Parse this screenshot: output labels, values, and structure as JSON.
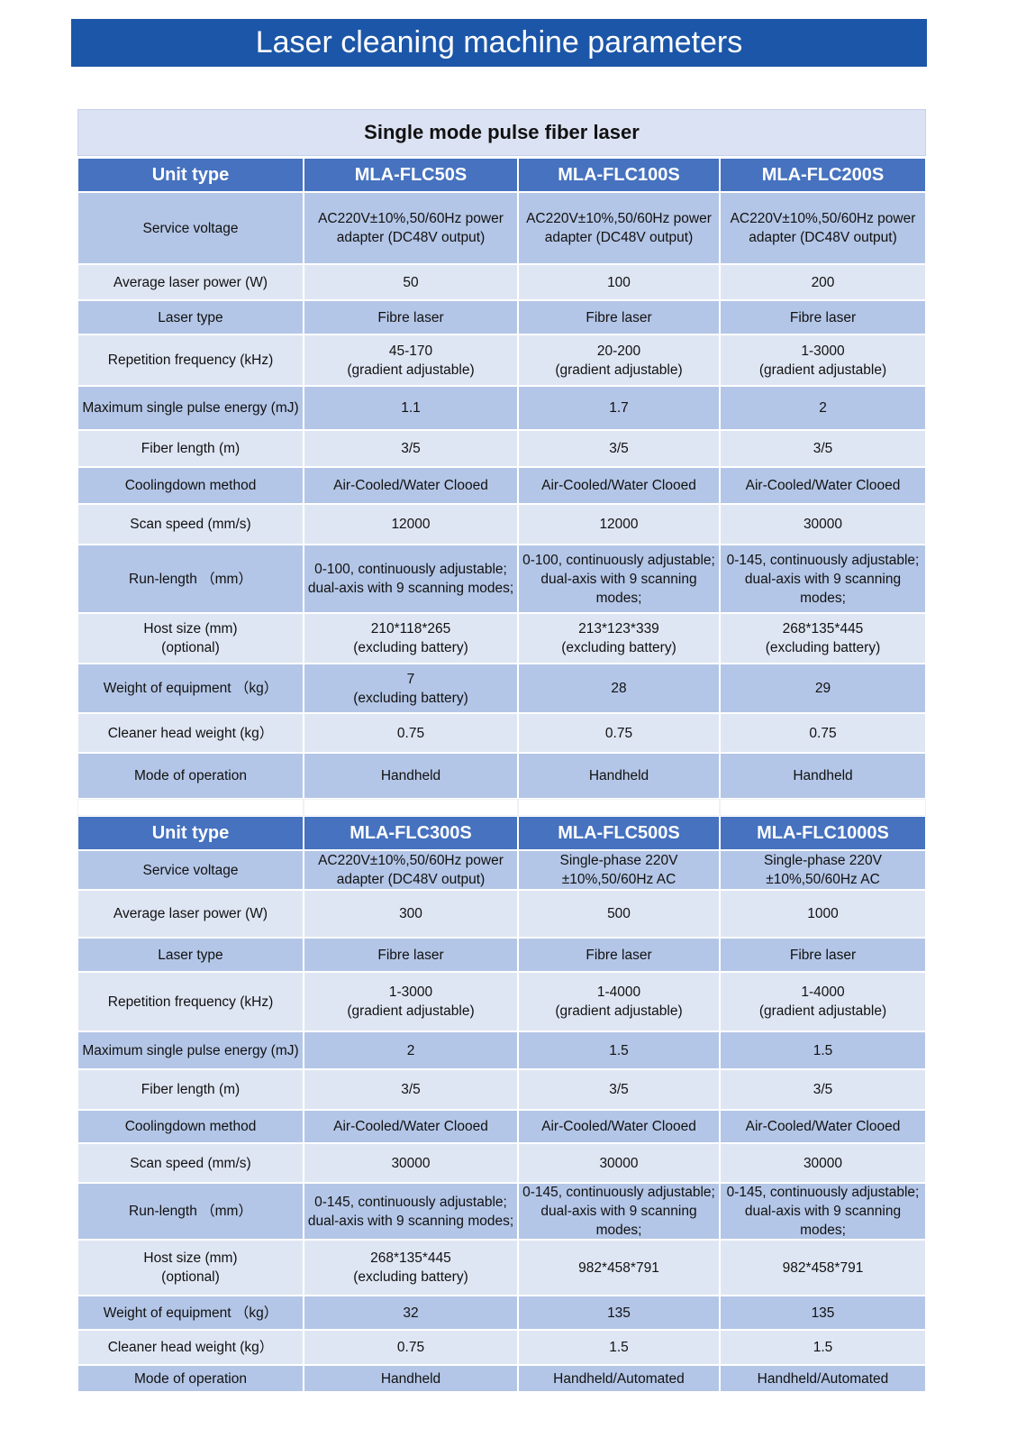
{
  "title": "Laser cleaning machine parameters",
  "subtitle": "Single mode pulse fiber laser",
  "tables": [
    {
      "header": [
        "Unit type",
        "MLA-FLC50S",
        "MLA-FLC100S",
        "MLA-FLC200S"
      ],
      "rows": [
        [
          "Service voltage",
          "AC220V±10%,50/60Hz power adapter (DC48V output)",
          "AC220V±10%,50/60Hz power adapter (DC48V output)",
          "AC220V±10%,50/60Hz power adapter (DC48V output)"
        ],
        [
          "Average laser power (W)",
          "50",
          "100",
          "200"
        ],
        [
          "Laser type",
          "Fibre laser",
          "Fibre laser",
          "Fibre laser"
        ],
        [
          "Repetition frequency (kHz)",
          "45-170\n(gradient adjustable)",
          "20-200\n(gradient adjustable)",
          "1-3000\n(gradient adjustable)"
        ],
        [
          "Maximum single pulse energy (mJ)",
          "1.1",
          "1.7",
          "2"
        ],
        [
          "Fiber length (m)",
          "3/5",
          "3/5",
          "3/5"
        ],
        [
          "Coolingdown method",
          "Air-Cooled/Water Clooed",
          "Air-Cooled/Water Clooed",
          "Air-Cooled/Water Clooed"
        ],
        [
          "Scan speed (mm/s)",
          "12000",
          "12000",
          "30000"
        ],
        [
          "Run-length （mm）",
          "0-100, continuously adjustable; dual-axis with 9 scanning modes;",
          "0-100, continuously adjustable; dual-axis with 9 scanning modes;",
          "0-145, continuously adjustable; dual-axis with 9 scanning modes;"
        ],
        [
          "Host size (mm)\n(optional)",
          "210*118*265\n(excluding battery)",
          "213*123*339\n(excluding battery)",
          "268*135*445\n(excluding battery)"
        ],
        [
          "Weight of equipment （kg）",
          "7\n(excluding battery)",
          "28",
          "29"
        ],
        [
          "Cleaner head weight (kg）",
          "0.75",
          "0.75",
          "0.75"
        ],
        [
          "Mode of operation",
          "Handheld",
          "Handheld",
          "Handheld"
        ]
      ]
    },
    {
      "header": [
        "Unit type",
        "MLA-FLC300S",
        "MLA-FLC500S",
        "MLA-FLC1000S"
      ],
      "rows": [
        [
          "Service voltage",
          "AC220V±10%,50/60Hz power adapter (DC48V output)",
          "Single-phase 220V\n±10%,50/60Hz AC",
          "Single-phase 220V\n±10%,50/60Hz AC"
        ],
        [
          "Average laser power (W)",
          "300",
          "500",
          "1000"
        ],
        [
          "Laser type",
          "Fibre laser",
          "Fibre laser",
          "Fibre laser"
        ],
        [
          "Repetition frequency (kHz)",
          "1-3000\n(gradient adjustable)",
          "1-4000\n(gradient adjustable)",
          "1-4000\n(gradient adjustable)"
        ],
        [
          "Maximum single pulse energy (mJ)",
          "2",
          "1.5",
          "1.5"
        ],
        [
          "Fiber length (m)",
          "3/5",
          "3/5",
          "3/5"
        ],
        [
          "Coolingdown method",
          "Air-Cooled/Water Clooed",
          "Air-Cooled/Water Clooed",
          "Air-Cooled/Water Clooed"
        ],
        [
          "Scan speed (mm/s)",
          "30000",
          "30000",
          "30000"
        ],
        [
          "Run-length （mm）",
          "0-145, continuously adjustable; dual-axis with 9 scanning modes;",
          "0-145, continuously adjustable; dual-axis with 9 scanning modes;",
          "0-145, continuously adjustable; dual-axis with 9 scanning modes;"
        ],
        [
          "Host size (mm)\n(optional)",
          "268*135*445\n(excluding battery)",
          "982*458*791",
          "982*458*791"
        ],
        [
          "Weight of equipment （kg）",
          "32",
          "135",
          "135"
        ],
        [
          "Cleaner head weight (kg）",
          "0.75",
          "1.5",
          "1.5"
        ],
        [
          "Mode of operation",
          "Handheld",
          "Handheld/Automated",
          "Handheld/Automated"
        ]
      ]
    }
  ]
}
